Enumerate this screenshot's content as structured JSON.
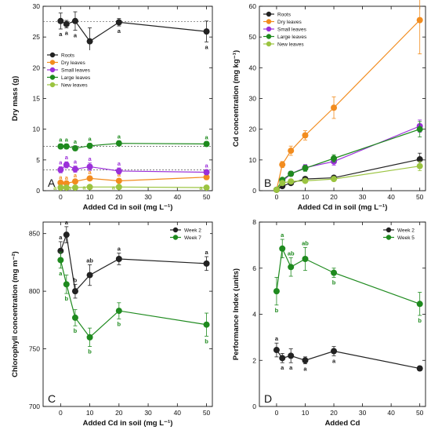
{
  "chart_data": [
    {
      "panel": "A",
      "type": "line",
      "xlabel": "Added Cd in soil (mg L⁻¹)",
      "ylabel": "Dry mass (g)",
      "xlim": [
        -6,
        52
      ],
      "ylim": [
        0,
        30
      ],
      "xticks": [
        0,
        10,
        20,
        30,
        40,
        50
      ],
      "yticks": [
        0,
        5,
        10,
        15,
        20,
        25,
        30
      ],
      "legend": "left",
      "x": [
        0,
        2,
        5,
        10,
        20,
        50
      ],
      "reference_lines": [
        {
          "y": 27.5,
          "color": "#555555"
        },
        {
          "y": 7.2,
          "color": "#555555"
        },
        {
          "y": 3.4,
          "color": "#555555"
        }
      ],
      "series": [
        {
          "name": "Roots",
          "color": "#222222",
          "values": [
            27.6,
            27.1,
            27.6,
            24.3,
            27.4,
            25.9
          ],
          "errors": [
            1.3,
            0.6,
            1.5,
            2.2,
            0.6,
            1.7
          ],
          "labels": [
            "a",
            "a",
            "a",
            "a",
            "a",
            "a"
          ],
          "label_side": "below"
        },
        {
          "name": "Dry leaves",
          "color": "#f28c1e",
          "values": [
            1.3,
            1.2,
            1.5,
            2.0,
            1.6,
            2.2
          ],
          "errors": [
            0.2,
            0.2,
            0.3,
            0.3,
            0.3,
            0.4
          ],
          "labels": [
            "a",
            "a",
            "a",
            "a",
            "a",
            "a"
          ],
          "label_side": "above"
        },
        {
          "name": "Small leaves",
          "color": "#9b30d9",
          "values": [
            3.4,
            4.2,
            3.5,
            3.9,
            3.2,
            3.0
          ],
          "errors": [
            0.5,
            0.5,
            0.5,
            0.6,
            0.5,
            0.4
          ],
          "labels": [
            "a",
            "a",
            "a",
            "a",
            "a",
            "a"
          ],
          "label_side": "above"
        },
        {
          "name": "Large leaves",
          "color": "#1e8a1e",
          "values": [
            7.2,
            7.2,
            6.9,
            7.3,
            7.7,
            7.6
          ],
          "errors": [
            0.4,
            0.4,
            0.4,
            0.4,
            0.4,
            0.4
          ],
          "labels": [
            "a",
            "a",
            "a",
            "a",
            "a",
            "a"
          ],
          "label_side": "above"
        },
        {
          "name": "New leaves",
          "color": "#9bc440",
          "values": [
            0.5,
            0.5,
            0.5,
            0.6,
            0.6,
            0.5
          ],
          "errors": [
            0.1,
            0.1,
            0.1,
            0.1,
            0.1,
            0.1
          ],
          "labels": [
            "a",
            "a",
            "a",
            "a",
            "a",
            "a"
          ],
          "label_side": "left"
        }
      ]
    },
    {
      "panel": "B",
      "type": "line",
      "xlabel": "Added Cd in soil (mg L⁻¹)",
      "ylabel": "Cd concentration (mg kg⁻¹)",
      "xlim": [
        -6,
        52
      ],
      "ylim": [
        0,
        60
      ],
      "xticks": [
        0,
        10,
        20,
        30,
        40,
        50
      ],
      "yticks": [
        0,
        10,
        20,
        30,
        40,
        50,
        60
      ],
      "legend": "top-left",
      "x": [
        0,
        2,
        5,
        10,
        20,
        50
      ],
      "series": [
        {
          "name": "Roots",
          "color": "#222222",
          "values": [
            0.3,
            1.5,
            2.5,
            3.8,
            4.2,
            10.2
          ],
          "errors": [
            0.1,
            0.3,
            0.4,
            0.5,
            0.6,
            2.0
          ]
        },
        {
          "name": "Dry leaves",
          "color": "#f28c1e",
          "values": [
            0.3,
            8.5,
            13.0,
            18.0,
            27.0,
            55.5
          ],
          "errors": [
            0.1,
            1.0,
            1.5,
            1.5,
            3.5,
            11.0
          ]
        },
        {
          "name": "Small leaves",
          "color": "#9b30d9",
          "values": [
            0.3,
            3.0,
            5.5,
            7.5,
            9.5,
            21.0
          ],
          "errors": [
            0.1,
            0.5,
            0.8,
            1.0,
            1.2,
            2.0
          ]
        },
        {
          "name": "Large leaves",
          "color": "#1e8a1e",
          "values": [
            0.3,
            3.5,
            5.5,
            7.3,
            10.5,
            20.0
          ],
          "errors": [
            0.1,
            0.5,
            0.8,
            1.0,
            1.2,
            2.5
          ]
        },
        {
          "name": "New leaves",
          "color": "#9bc440",
          "values": [
            0.3,
            2.5,
            3.0,
            3.2,
            3.8,
            8.0
          ],
          "errors": [
            0.1,
            0.4,
            0.4,
            0.5,
            0.5,
            1.5
          ]
        }
      ]
    },
    {
      "panel": "C",
      "type": "line",
      "xlabel": "Added Cd in soil (mg L⁻¹)",
      "ylabel": "Chlorophyll concentration (mg m⁻²)",
      "xlim": [
        -6,
        52
      ],
      "ylim": [
        700,
        860
      ],
      "xticks": [
        0,
        10,
        20,
        30,
        40,
        50
      ],
      "yticks": [
        700,
        750,
        800,
        850
      ],
      "legend": "top-right",
      "x": [
        0,
        2,
        5,
        10,
        20,
        50
      ],
      "series": [
        {
          "name": "Week 2",
          "color": "#222222",
          "values": [
            835,
            849,
            800,
            814,
            828,
            824
          ],
          "errors": [
            8,
            7,
            6,
            9,
            5,
            6
          ],
          "labels": [
            "a",
            "a",
            "b",
            "ab",
            "a",
            "a"
          ],
          "label_side": "above"
        },
        {
          "name": "Week 7",
          "color": "#1e8a1e",
          "values": [
            827,
            806,
            777,
            760,
            783,
            771
          ],
          "errors": [
            7,
            8,
            7,
            8,
            7,
            10
          ],
          "labels": [
            "a",
            "b",
            "b",
            "b",
            "b",
            "b"
          ],
          "label_side": "below"
        }
      ]
    },
    {
      "panel": "D",
      "type": "line",
      "xlabel": "Added Cd",
      "ylabel": "Performance Index (units)",
      "xlim": [
        -6,
        52
      ],
      "ylim": [
        0,
        8
      ],
      "xticks": [
        0,
        10,
        20,
        30,
        40,
        50
      ],
      "yticks": [
        0,
        2,
        4,
        6,
        8
      ],
      "legend": "top-right",
      "x": [
        0,
        2,
        5,
        10,
        20,
        50
      ],
      "series": [
        {
          "name": "Week 2",
          "color": "#222222",
          "values": [
            2.45,
            2.1,
            2.2,
            2.0,
            2.4,
            1.65
          ],
          "errors": [
            0.3,
            0.2,
            0.3,
            0.15,
            0.2,
            0.1
          ],
          "labels": [
            "a",
            "a",
            "a",
            "a",
            "a",
            ""
          ],
          "label_side": "mixed_d1"
        },
        {
          "name": "Week 5",
          "color": "#1e8a1e",
          "values": [
            5.0,
            6.85,
            6.05,
            6.4,
            5.8,
            4.45
          ],
          "errors": [
            0.6,
            0.4,
            0.4,
            0.5,
            0.2,
            0.5
          ],
          "labels": [
            "b",
            "a",
            "ab",
            "ab",
            "b",
            "b"
          ],
          "label_side": "mixed_d2"
        }
      ]
    }
  ]
}
